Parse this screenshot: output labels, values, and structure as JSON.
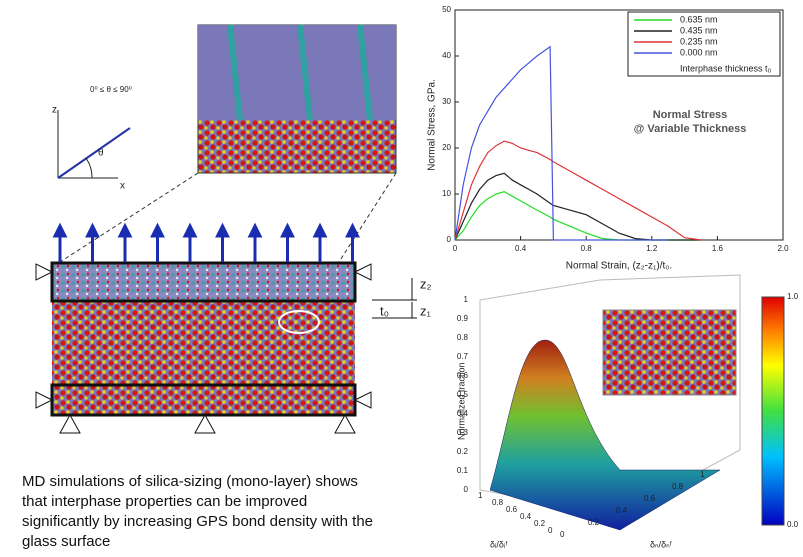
{
  "chart_data": {
    "type": "line",
    "y_label": "Normal Stress, GPa.",
    "x_label": "Normal Strain, (z₂-z₁)/t₀.",
    "annotation": [
      "Normal Stress",
      "@ Variable Thickness"
    ],
    "legend_title": "Interphase thickness t₀",
    "x": [
      0,
      0.05,
      0.1,
      0.15,
      0.2,
      0.25,
      0.3,
      0.35,
      0.4,
      0.45,
      0.5,
      0.58,
      0.6,
      0.7,
      0.8,
      0.9,
      1.0,
      1.1,
      1.2,
      1.3,
      1.4,
      1.5
    ],
    "series": [
      {
        "name": "0.635 nm",
        "color": "#22dd22",
        "values": [
          0,
          2,
          5,
          7.5,
          9,
          10,
          10.5,
          9.5,
          8.5,
          7.5,
          6.5,
          5,
          4.5,
          3,
          1.5,
          0.3,
          0,
          0,
          0,
          0,
          0,
          0
        ]
      },
      {
        "name": "0.435 nm",
        "color": "#222222",
        "values": [
          0,
          4,
          8,
          11,
          13,
          14,
          14.5,
          13,
          12,
          11,
          10,
          8,
          7.5,
          6.5,
          5.5,
          3.5,
          1.5,
          0.3,
          0,
          0,
          0,
          0
        ]
      },
      {
        "name": "0.235 nm",
        "color": "#dd3333",
        "values": [
          0,
          6,
          12,
          16,
          19,
          20.5,
          21.5,
          21,
          20,
          19.5,
          19,
          17.5,
          17,
          15,
          13,
          11,
          9,
          7,
          5,
          3,
          0.5,
          0
        ]
      },
      {
        "name": "0.000 nm",
        "color": "#4455dd",
        "values": [
          0,
          12,
          20,
          25,
          28,
          31,
          33,
          35,
          37,
          38.5,
          40,
          42,
          0,
          0,
          0,
          0,
          0,
          0,
          0,
          0,
          null,
          null
        ]
      }
    ],
    "xlim": [
      0,
      2
    ],
    "xticks": [
      0,
      0.4,
      0.8,
      1.2,
      1.6,
      {
        "value": 2,
        "label": "2.0"
      }
    ],
    "ylim": [
      0,
      50
    ],
    "yticks": [
      0,
      10,
      20,
      30,
      40,
      50
    ],
    "legend": "upper right",
    "grid": false
  },
  "diagram": {
    "angle_range": "0⁰ ≤ θ ≤ 90⁰",
    "axis_z": "z",
    "axis_x": "x",
    "theta": "θ",
    "z2": "z₂",
    "z1": "z₁",
    "t0": "t₀"
  },
  "surface_plot": {
    "z_label": "Normalized traction",
    "z_ticks": [
      "0",
      "0.1",
      "0.2",
      "0.3",
      "0.4",
      "0.5",
      "0.6",
      "0.7",
      "0.8",
      "0.9",
      "1"
    ],
    "left_label": "δᵢ/δᵢᶠ",
    "right_label": "δₙ/δₙᶠ",
    "left_ticks": [
      "1",
      "0.8",
      "0.6",
      "0.4",
      "0.2",
      "0"
    ],
    "right_ticks": [
      "0",
      "0.2",
      "0.4",
      "0.6",
      "0.8",
      "1"
    ],
    "colorbar_ticks": [
      "1.0",
      "0.0"
    ]
  },
  "caption": [
    "MD simulations of silica-sizing (mono-layer) shows",
    "that interphase properties can be improved",
    "significantly by increasing GPS bond density with the",
    "glass surface"
  ]
}
